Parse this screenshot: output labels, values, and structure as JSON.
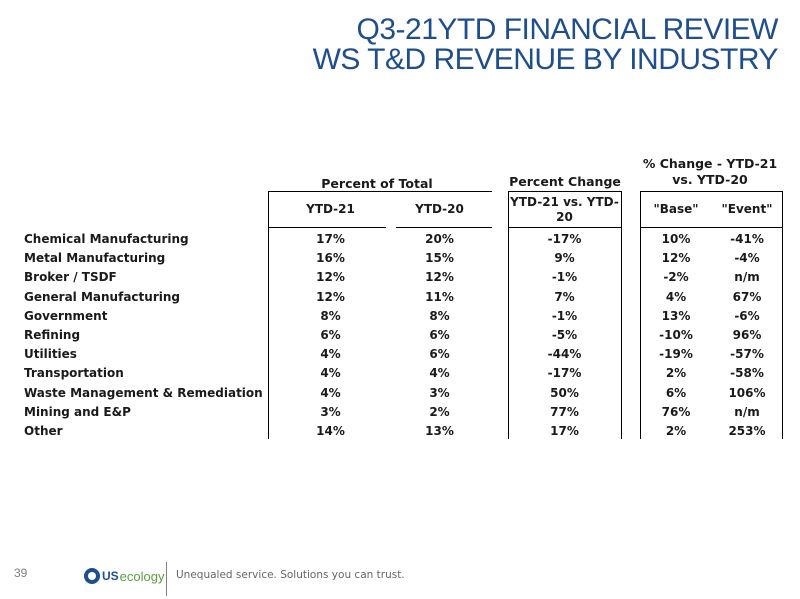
{
  "title": {
    "line1": "Q3-21YTD FINANCIAL REVIEW",
    "line2": "WS T&D REVENUE BY INDUSTRY"
  },
  "groups": {
    "percent_of_total": "Percent of Total",
    "percent_change": "Percent Change",
    "pct_change_ytd_line1": "% Change - YTD-21",
    "pct_change_ytd_line2": "vs. YTD-20"
  },
  "columns": {
    "ytd21": "YTD-21",
    "ytd20": "YTD-20",
    "ytd_vs_line1": "YTD-21 vs. YTD-",
    "ytd_vs_line2": "20",
    "base": "\"Base\"",
    "event": "\"Event\""
  },
  "rows": [
    {
      "industry": "Chemical Manufacturing",
      "ytd21": "17%",
      "ytd20": "20%",
      "change": "-17%",
      "base": "10%",
      "event": "-41%"
    },
    {
      "industry": "Metal Manufacturing",
      "ytd21": "16%",
      "ytd20": "15%",
      "change": "9%",
      "base": "12%",
      "event": "-4%"
    },
    {
      "industry": "Broker / TSDF",
      "ytd21": "12%",
      "ytd20": "12%",
      "change": "-1%",
      "base": "-2%",
      "event": "n/m"
    },
    {
      "industry": "General Manufacturing",
      "ytd21": "12%",
      "ytd20": "11%",
      "change": "7%",
      "base": "4%",
      "event": "67%"
    },
    {
      "industry": "Government",
      "ytd21": "8%",
      "ytd20": "8%",
      "change": "-1%",
      "base": "13%",
      "event": "-6%"
    },
    {
      "industry": "Refining",
      "ytd21": "6%",
      "ytd20": "6%",
      "change": "-5%",
      "base": "-10%",
      "event": "96%"
    },
    {
      "industry": "Utilities",
      "ytd21": "4%",
      "ytd20": "6%",
      "change": "-44%",
      "base": "-19%",
      "event": "-57%"
    },
    {
      "industry": "Transportation",
      "ytd21": "4%",
      "ytd20": "4%",
      "change": "-17%",
      "base": "2%",
      "event": "-58%"
    },
    {
      "industry": "Waste Management & Remediation",
      "ytd21": "4%",
      "ytd20": "3%",
      "change": "50%",
      "base": "6%",
      "event": "106%"
    },
    {
      "industry": "Mining and E&P",
      "ytd21": "3%",
      "ytd20": "2%",
      "change": "77%",
      "base": "76%",
      "event": "n/m"
    },
    {
      "industry": "Other",
      "ytd21": "14%",
      "ytd20": "13%",
      "change": "17%",
      "base": "2%",
      "event": "253%"
    }
  ],
  "footer": {
    "page_number": "39",
    "logo_us": "US",
    "logo_ecology": "ecology",
    "tagline": "Unequaled service. Solutions you can trust."
  },
  "colors": {
    "title": "#1f4e8c",
    "logo_green": "#5a9f3c"
  }
}
